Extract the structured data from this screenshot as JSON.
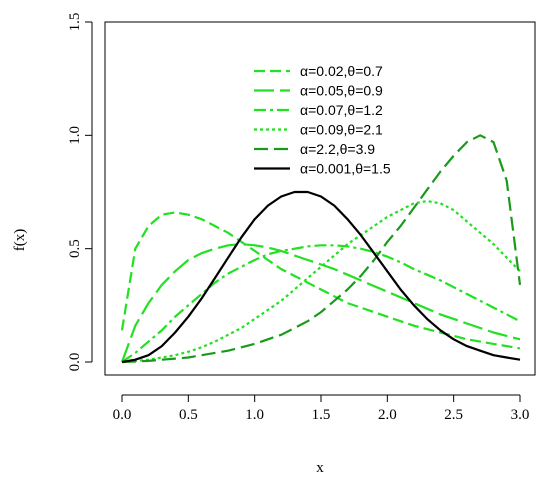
{
  "chart_data": {
    "type": "line",
    "xlabel": "x",
    "ylabel": "f(x)",
    "xlim": [
      0.0,
      3.0
    ],
    "ylim": [
      0.0,
      1.5
    ],
    "x_ticks": [
      "0.0",
      "0.5",
      "1.0",
      "1.5",
      "2.0",
      "2.5",
      "3.0"
    ],
    "y_ticks": [
      "0.0",
      "0.5",
      "1.0",
      "1.5"
    ],
    "legend_position": "top-center",
    "x": [
      0,
      0.1,
      0.2,
      0.3,
      0.4,
      0.5,
      0.6,
      0.7,
      0.8,
      0.9,
      1.0,
      1.1,
      1.2,
      1.3,
      1.4,
      1.5,
      1.6,
      1.7,
      1.8,
      1.9,
      2.0,
      2.1,
      2.2,
      2.3,
      2.4,
      2.5,
      2.6,
      2.7,
      2.8,
      2.9,
      3.0
    ],
    "series": [
      {
        "name": "α=0.02,θ=0.7",
        "color": "#22e022",
        "dash": "11 5",
        "values": [
          0.14,
          0.5,
          0.6,
          0.65,
          0.66,
          0.65,
          0.63,
          0.6,
          0.57,
          0.53,
          0.49,
          0.45,
          0.41,
          0.38,
          0.35,
          0.32,
          0.29,
          0.26,
          0.24,
          0.22,
          0.2,
          0.18,
          0.16,
          0.145,
          0.13,
          0.115,
          0.1,
          0.09,
          0.08,
          0.07,
          0.06
        ]
      },
      {
        "name": "α=0.05,θ=0.9",
        "color": "#22e022",
        "dash": "20 6",
        "values": [
          0.0,
          0.16,
          0.26,
          0.34,
          0.4,
          0.45,
          0.48,
          0.5,
          0.515,
          0.52,
          0.515,
          0.505,
          0.49,
          0.47,
          0.45,
          0.43,
          0.41,
          0.385,
          0.36,
          0.335,
          0.31,
          0.285,
          0.26,
          0.235,
          0.21,
          0.19,
          0.17,
          0.15,
          0.13,
          0.115,
          0.1
        ]
      },
      {
        "name": "α=0.07,θ=1.2",
        "color": "#22e022",
        "dash": "12 4 3 4",
        "values": [
          0.0,
          0.04,
          0.09,
          0.14,
          0.2,
          0.25,
          0.3,
          0.35,
          0.39,
          0.42,
          0.45,
          0.475,
          0.49,
          0.5,
          0.51,
          0.515,
          0.515,
          0.51,
          0.5,
          0.485,
          0.465,
          0.44,
          0.41,
          0.385,
          0.36,
          0.33,
          0.3,
          0.27,
          0.24,
          0.21,
          0.18
        ]
      },
      {
        "name": "α=0.09,θ=2.1",
        "color": "#22e022",
        "dash": "3 3",
        "values": [
          0.0,
          0.005,
          0.01,
          0.02,
          0.03,
          0.045,
          0.065,
          0.09,
          0.12,
          0.15,
          0.19,
          0.23,
          0.27,
          0.32,
          0.37,
          0.42,
          0.47,
          0.52,
          0.56,
          0.6,
          0.64,
          0.67,
          0.7,
          0.71,
          0.7,
          0.67,
          0.62,
          0.57,
          0.52,
          0.46,
          0.4
        ]
      },
      {
        "name": "α=2.2,θ=3.9",
        "color": "#1a9a1a",
        "dash": "14 6",
        "values": [
          0.0,
          0.002,
          0.005,
          0.01,
          0.015,
          0.02,
          0.03,
          0.04,
          0.05,
          0.065,
          0.08,
          0.1,
          0.12,
          0.15,
          0.18,
          0.22,
          0.27,
          0.32,
          0.38,
          0.45,
          0.53,
          0.6,
          0.68,
          0.76,
          0.84,
          0.91,
          0.97,
          1.0,
          0.97,
          0.8,
          0.34
        ]
      },
      {
        "name": "α=0.001,θ=1.5",
        "color": "#000000",
        "dash": "",
        "values": [
          0.0,
          0.01,
          0.03,
          0.07,
          0.13,
          0.2,
          0.28,
          0.37,
          0.46,
          0.55,
          0.63,
          0.69,
          0.73,
          0.75,
          0.75,
          0.73,
          0.69,
          0.63,
          0.56,
          0.48,
          0.4,
          0.32,
          0.25,
          0.19,
          0.14,
          0.1,
          0.07,
          0.05,
          0.03,
          0.02,
          0.01
        ]
      }
    ]
  }
}
